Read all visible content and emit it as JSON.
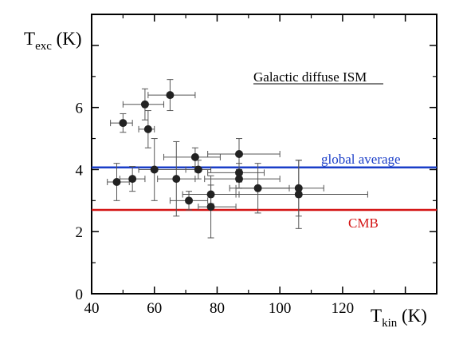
{
  "chart_data": {
    "type": "scatter",
    "title": "",
    "annotation": "Galactic diffuse ISM",
    "xlabel": {
      "main": "T",
      "sub": "kin",
      "unit": " (K)"
    },
    "ylabel": {
      "main": "T",
      "sub": "exc",
      "unit": " (K)"
    },
    "xlim": [
      40,
      150
    ],
    "ylim": [
      0,
      9
    ],
    "xticks": [
      40,
      60,
      80,
      100,
      120
    ],
    "yticks": [
      0,
      2,
      4,
      6
    ],
    "grid": false,
    "points": [
      {
        "x": 48,
        "y": 3.6,
        "xerr": [
          3,
          4
        ],
        "yerr": [
          0.6,
          0.6
        ]
      },
      {
        "x": 50,
        "y": 5.5,
        "xerr": [
          4,
          3
        ],
        "yerr": [
          0.3,
          0.3
        ]
      },
      {
        "x": 53,
        "y": 3.7,
        "xerr": [
          4,
          4
        ],
        "yerr": [
          0.4,
          0.4
        ]
      },
      {
        "x": 57,
        "y": 6.1,
        "xerr": [
          7,
          6
        ],
        "yerr": [
          0.5,
          0.5
        ]
      },
      {
        "x": 58,
        "y": 5.3,
        "xerr": [
          3,
          2
        ],
        "yerr": [
          0.6,
          0.6
        ]
      },
      {
        "x": 60,
        "y": 4.0,
        "xerr": [
          5,
          13
        ],
        "yerr": [
          1.0,
          1.0
        ]
      },
      {
        "x": 65,
        "y": 6.4,
        "xerr": [
          7,
          8
        ],
        "yerr": [
          0.5,
          0.5
        ]
      },
      {
        "x": 67,
        "y": 3.7,
        "xerr": [
          6,
          6
        ],
        "yerr": [
          1.2,
          1.2
        ]
      },
      {
        "x": 71,
        "y": 3.0,
        "xerr": [
          6,
          6
        ],
        "yerr": [
          0.3,
          0.3
        ]
      },
      {
        "x": 73,
        "y": 4.4,
        "xerr": [
          10,
          8
        ],
        "yerr": [
          0.3,
          0.3
        ]
      },
      {
        "x": 74,
        "y": 4.0,
        "xerr": [
          4,
          4
        ],
        "yerr": [
          0.3,
          0.3
        ]
      },
      {
        "x": 78,
        "y": 3.2,
        "xerr": [
          9,
          9
        ],
        "yerr": [
          0.3,
          0.3
        ]
      },
      {
        "x": 78,
        "y": 2.8,
        "xerr": [
          4,
          8
        ],
        "yerr": [
          1.0,
          1.0
        ]
      },
      {
        "x": 87,
        "y": 4.5,
        "xerr": [
          10,
          13
        ],
        "yerr": [
          0.5,
          0.5
        ]
      },
      {
        "x": 87,
        "y": 3.9,
        "xerr": [
          10,
          8
        ],
        "yerr": [
          0.3,
          0.3
        ]
      },
      {
        "x": 87,
        "y": 3.7,
        "xerr": [
          11,
          13
        ],
        "yerr": [
          0.3,
          0.3
        ]
      },
      {
        "x": 93,
        "y": 3.4,
        "xerr": [
          9,
          10
        ],
        "yerr": [
          0.8,
          0.8
        ]
      },
      {
        "x": 106,
        "y": 3.4,
        "xerr": [
          20,
          8
        ],
        "yerr": [
          0.9,
          0.9
        ]
      },
      {
        "x": 106,
        "y": 3.2,
        "xerr": [
          20,
          22
        ],
        "yerr": [
          1.1,
          1.1
        ]
      }
    ],
    "reference_lines": [
      {
        "label": "global average",
        "y": 4.07,
        "color": "#1a3ec8"
      },
      {
        "label": "CMB",
        "y": 2.7,
        "color": "#d41414"
      }
    ],
    "colors": {
      "points": "#222222",
      "errorbars": "#555555",
      "axes": "#000000"
    }
  }
}
